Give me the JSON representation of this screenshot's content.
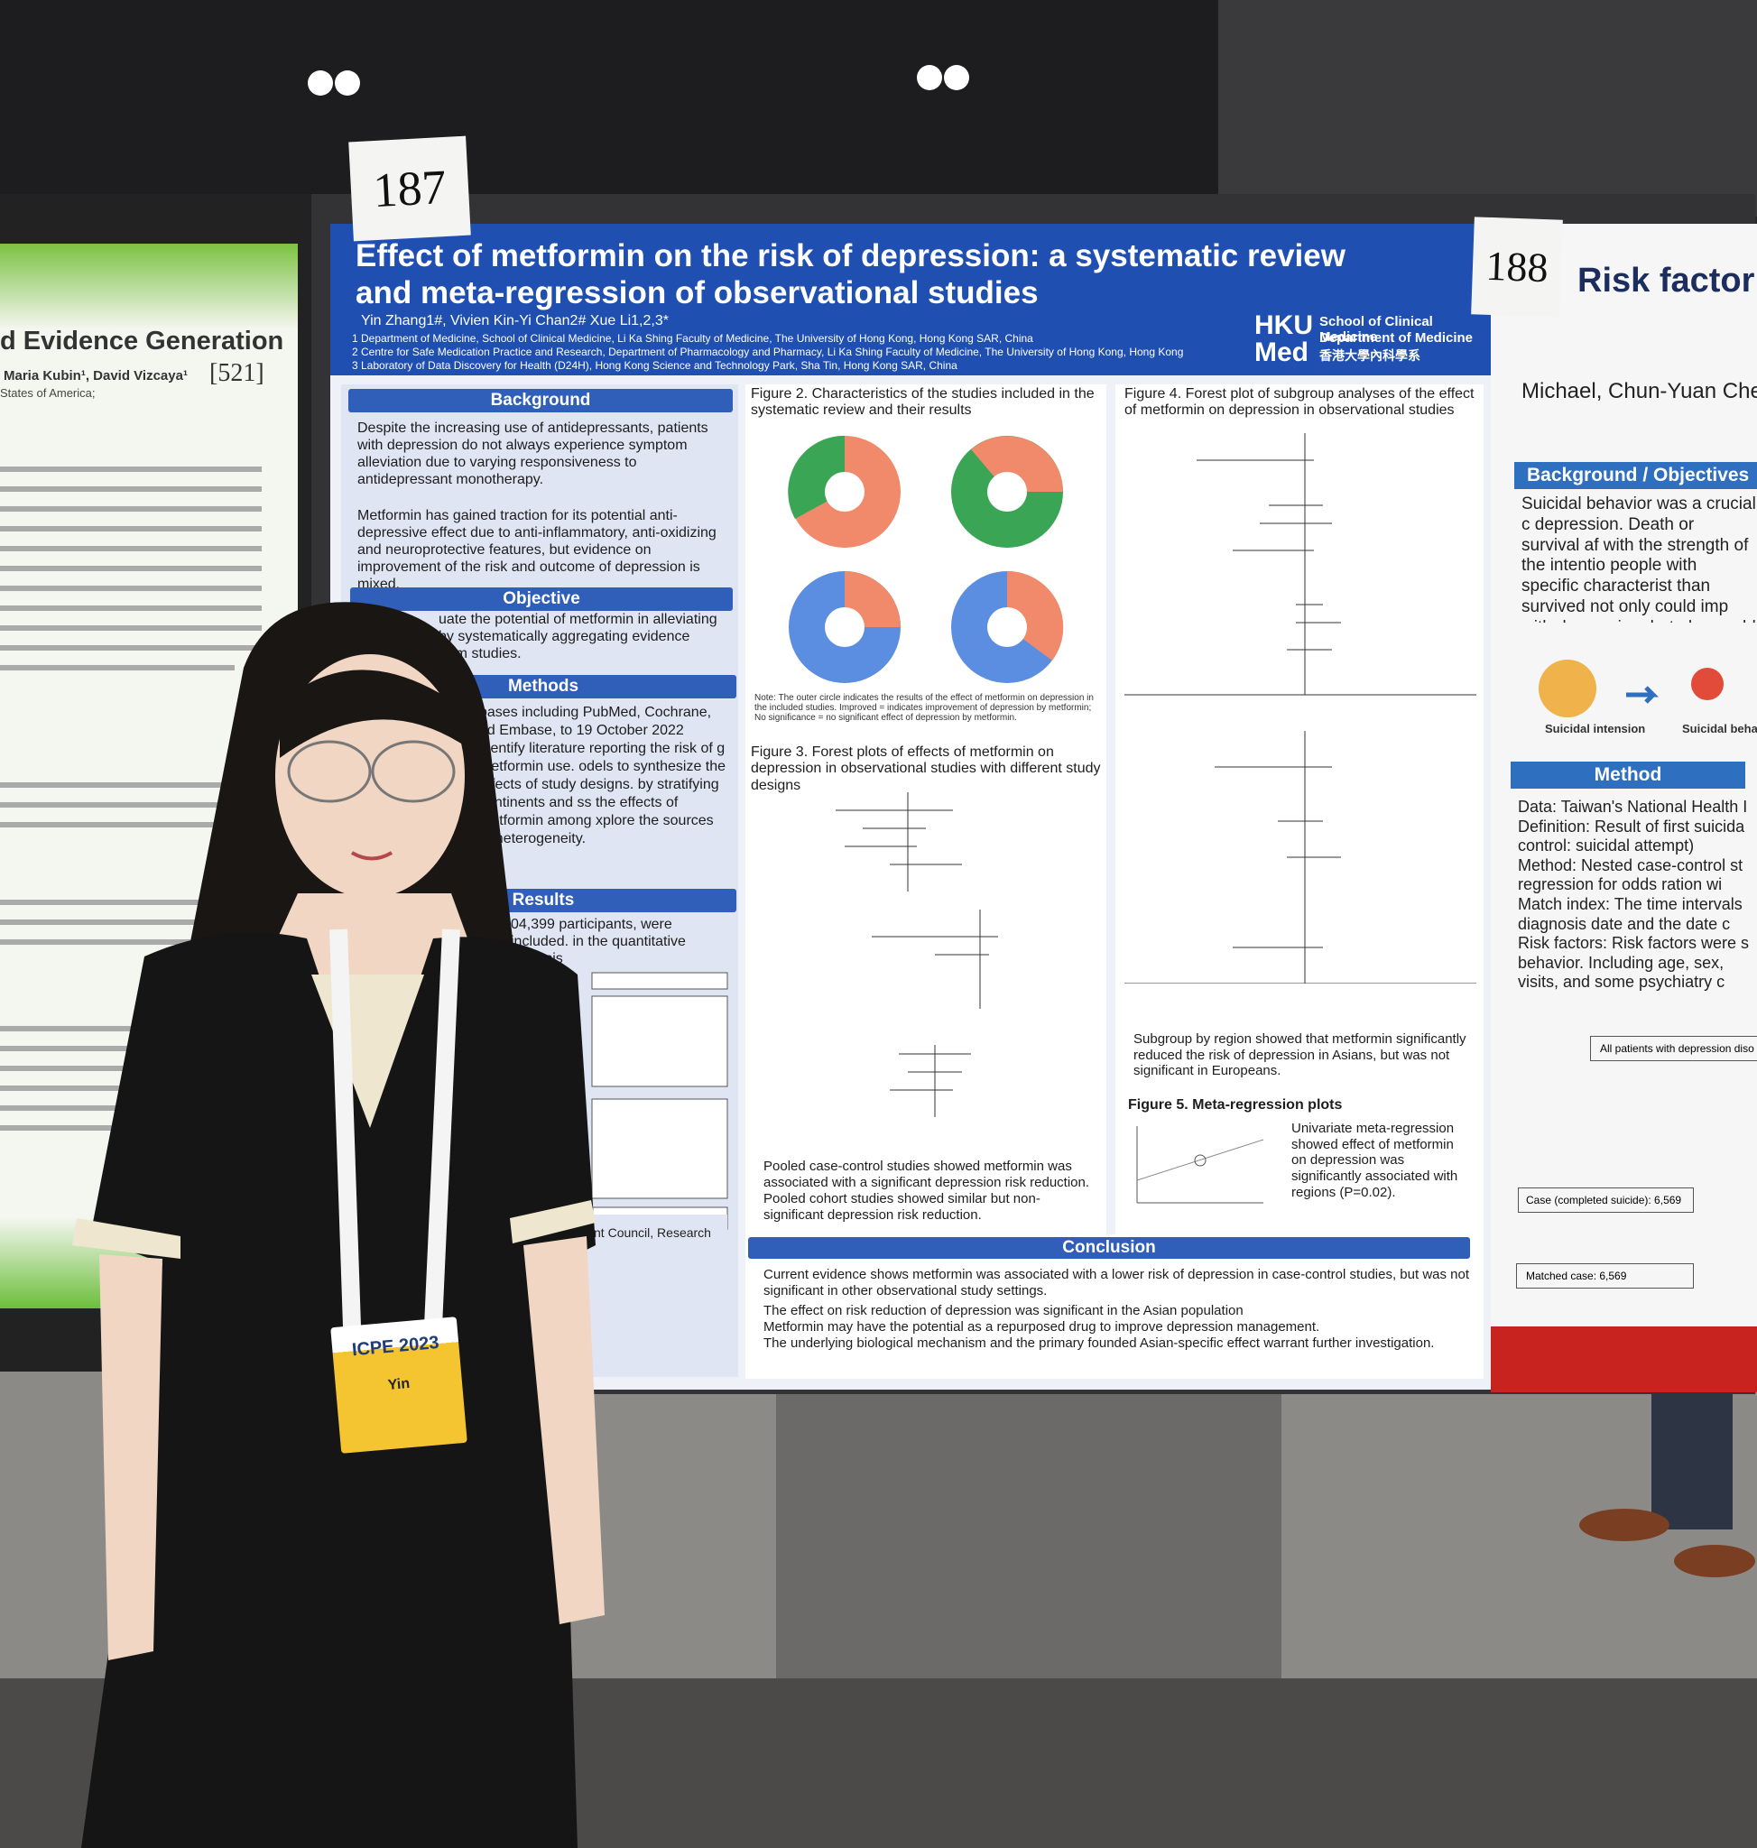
{
  "left_poster": {
    "title": "d Evidence Generation",
    "authors": "Maria Kubin¹, David Vizcaya¹",
    "number": "[521]",
    "affiliation": "States of America;"
  },
  "poster_187": {
    "number": "187",
    "title_line_1": "Effect of metformin on the risk of depression: a systematic review",
    "title_line_2": "and meta-regression of observational studies",
    "authors": "Yin Zhang1#, Vivien Kin-Yi Chan2# Xue Li1,2,3*",
    "affiliations": [
      "1 Department of Medicine, School of Clinical Medicine, Li Ka Shing Faculty of Medicine, The University of Hong Kong, Hong Kong SAR, China",
      "2 Centre for Safe Medication Practice and Research, Department of Pharmacology and Pharmacy, Li Ka Shing Faculty of Medicine, The University of Hong Kong, Hong Kong",
      "3 Laboratory of Data Discovery for Health (D24H), Hong Kong Science and Technology Park, Sha Tin, Hong Kong SAR, China"
    ],
    "logo": "HKU Med",
    "department_1": "School of Clinical Medicine",
    "department_2": "Department of Medicine",
    "department_3": "香港大學內科學系",
    "background": {
      "heading": "Background",
      "bullets": [
        "Despite the increasing use of antidepressants, patients with depression do not always experience symptom alleviation due to varying responsiveness to antidepressant monotherapy.",
        "Metformin has gained traction for its potential anti-depressive effect due to anti-inflammatory, anti-oxidizing and neuroprotective features, but evidence on improvement of the risk and outcome of depression is mixed."
      ]
    },
    "objective": {
      "heading": "Objective",
      "text": "uate the potential of metformin in alleviating by systematically aggregating evidence from studies."
    },
    "methods": {
      "heading": "Methods",
      "text": "bases including PubMed, Cochrane, nd Embase, to 19 October 2022 identify literature reporting the risk of g metformin use. odels to synthesize the effects of study designs. by stratifying continents and ss the effects of metformin among xplore the sources of heterogeneity."
    },
    "results": {
      "heading": "Results",
      "text": "04,399 participants, were included. in the quantitative analysis"
    },
    "funding": "ch Grant Council, Research",
    "figure_2": "Figure 2. Characteristics of the studies included in the systematic review and their results",
    "figure_2_note": "Note: The outer circle indicates the results of the effect of metformin on depression in the included studies. Improved = indicates improvement of depression by metformin; No significance = no significant effect of depression by metformin.",
    "figure_3": "Figure 3. Forest plots of effects of metformin on depression in observational studies with different study designs",
    "figure_3_bullets": [
      "Pooled case-control studies showed metformin was associated with a significant depression risk reduction.",
      "Pooled cohort studies showed similar but non-significant depression risk reduction."
    ],
    "figure_4": "Figure 4. Forest plot of subgroup analyses of the effect of metformin on depression in observational studies",
    "figure_4_bullet": "Subgroup by region showed that metformin significantly reduced the risk of depression in Asians, but was not significant in Europeans.",
    "figure_5": "Figure 5. Meta-regression plots",
    "figure_5_bullet": "Univariate meta-regression showed effect of metformin on depression was significantly associated with regions (P=0.02).",
    "conclusion": {
      "heading": "Conclusion",
      "bullets": [
        "Current evidence shows metformin was associated with a lower risk of depression in case-control studies, but was not significant in other observational study settings.",
        "The effect on risk reduction of depression was significant in the Asian population",
        "Metformin may have the potential as a repurposed drug to improve depression management.",
        "The underlying biological mechanism and the primary founded Asian-specific effect warrant further investigation."
      ]
    }
  },
  "right_poster": {
    "number": "188",
    "title": "Risk factor",
    "author": "Michael, Chun-Yuan Cheng",
    "background_heading": "Background / Objectives",
    "background_text": "Suicidal behavior was a crucial c depression. Death or survival af with the strength of the intentio people with specific characterist than survived not only could imp with depression, but also could s",
    "icon_1": "Suicidal intension",
    "icon_2": "Suicidal behavio",
    "method_heading": "Method",
    "method_lines": [
      "Data: Taiwan's National Health I",
      "Definition: Result of first suicida control: suicidal attempt)",
      "Method: Nested case-control st regression for odds ration wi",
      "Match index: The time intervals diagnosis date and the date c",
      "Risk factors: Risk factors were s behavior. Including age, sex, visits, and some psychiatry c"
    ],
    "flow_1": "All patients with depression diso",
    "flow_2": "Case (completed suicide): 6,569",
    "flow_3": "Matched case: 6,569"
  },
  "badge": {
    "event": "ICPE 2023",
    "name": "Yin"
  }
}
